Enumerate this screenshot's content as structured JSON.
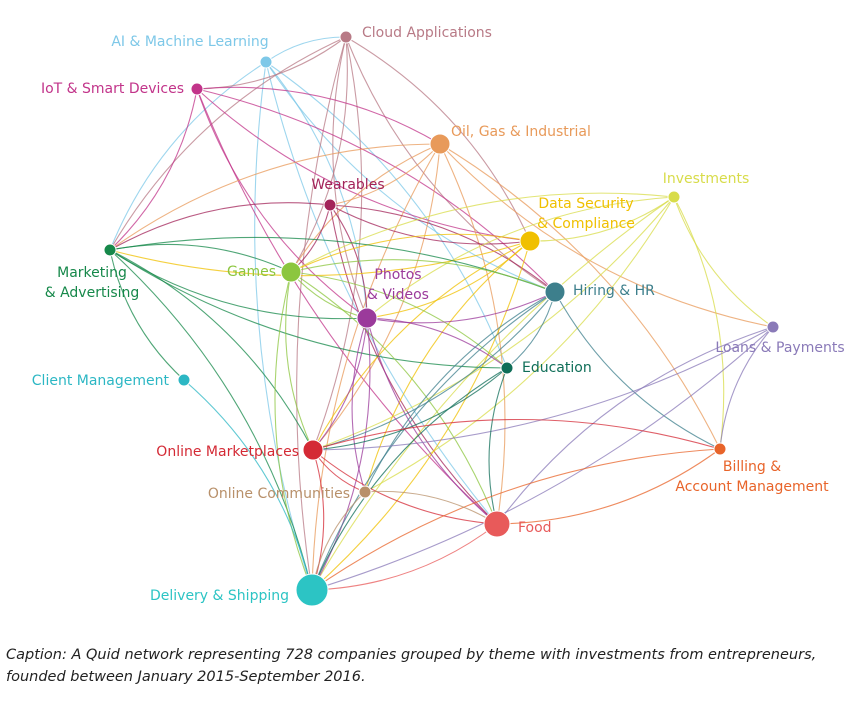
{
  "network": {
    "nodes": [
      {
        "id": "ai",
        "label_lines": [
          "AI & Machine Learning"
        ],
        "color": "#7ec8e8",
        "size": "small"
      },
      {
        "id": "cloud",
        "label_lines": [
          "Cloud Applications"
        ],
        "color": "#b87a86",
        "size": "small"
      },
      {
        "id": "iot",
        "label_lines": [
          "IoT & Smart Devices"
        ],
        "color": "#c2348a",
        "size": "small"
      },
      {
        "id": "oil",
        "label_lines": [
          "Oil, Gas & Industrial"
        ],
        "color": "#e89a5a",
        "size": "medium"
      },
      {
        "id": "wearables",
        "label_lines": [
          "Wearables"
        ],
        "color": "#a3245a",
        "size": "small"
      },
      {
        "id": "investments",
        "label_lines": [
          "Investments"
        ],
        "color": "#d8dc4a",
        "size": "small"
      },
      {
        "id": "datasec",
        "label_lines": [
          "Data Security",
          "& Compliance"
        ],
        "color": "#f0c000",
        "size": "medium"
      },
      {
        "id": "marketing",
        "label_lines": [
          "Marketing",
          "& Advertising"
        ],
        "color": "#16884a",
        "size": "small"
      },
      {
        "id": "games",
        "label_lines": [
          "Games"
        ],
        "color": "#8cc63f",
        "size": "medium"
      },
      {
        "id": "photos",
        "label_lines": [
          "Photos",
          "& Videos"
        ],
        "color": "#9b3a9b",
        "size": "medium"
      },
      {
        "id": "hiring",
        "label_lines": [
          "Hiring & HR"
        ],
        "color": "#3d7f8c",
        "size": "medium"
      },
      {
        "id": "loans",
        "label_lines": [
          "Loans & Payments"
        ],
        "color": "#8a7ab8",
        "size": "small"
      },
      {
        "id": "client",
        "label_lines": [
          "Client Management"
        ],
        "color": "#2cb7c4",
        "size": "small"
      },
      {
        "id": "education",
        "label_lines": [
          "Education"
        ],
        "color": "#0f6e58",
        "size": "small"
      },
      {
        "id": "marketplaces",
        "label_lines": [
          "Online Marketplaces"
        ],
        "color": "#d42a35",
        "size": "medium"
      },
      {
        "id": "billing",
        "label_lines": [
          "Billing &",
          "Account Management"
        ],
        "color": "#e8642a",
        "size": "small"
      },
      {
        "id": "communities",
        "label_lines": [
          "Online Communities"
        ],
        "color": "#b8906a",
        "size": "small"
      },
      {
        "id": "food",
        "label_lines": [
          "Food"
        ],
        "color": "#e85a5a",
        "size": "large"
      },
      {
        "id": "delivery",
        "label_lines": [
          "Delivery & Shipping"
        ],
        "color": "#2cc4c4",
        "size": "xlarge"
      }
    ],
    "edges": [
      [
        "ai",
        "marketing"
      ],
      [
        "ai",
        "photos"
      ],
      [
        "ai",
        "hiring"
      ],
      [
        "ai",
        "education"
      ],
      [
        "ai",
        "food"
      ],
      [
        "ai",
        "cloud"
      ],
      [
        "ai",
        "delivery"
      ],
      [
        "cloud",
        "iot"
      ],
      [
        "cloud",
        "marketing"
      ],
      [
        "cloud",
        "games"
      ],
      [
        "cloud",
        "photos"
      ],
      [
        "cloud",
        "marketplaces"
      ],
      [
        "cloud",
        "delivery"
      ],
      [
        "cloud",
        "datasec"
      ],
      [
        "cloud",
        "hiring"
      ],
      [
        "iot",
        "marketing"
      ],
      [
        "iot",
        "photos"
      ],
      [
        "iot",
        "hiring"
      ],
      [
        "iot",
        "food"
      ],
      [
        "iot",
        "oil"
      ],
      [
        "iot",
        "datasec"
      ],
      [
        "oil",
        "wearables"
      ],
      [
        "oil",
        "games"
      ],
      [
        "oil",
        "marketplaces"
      ],
      [
        "oil",
        "delivery"
      ],
      [
        "oil",
        "food"
      ],
      [
        "oil",
        "marketing"
      ],
      [
        "oil",
        "billing"
      ],
      [
        "oil",
        "loans"
      ],
      [
        "wearables",
        "photos"
      ],
      [
        "wearables",
        "food"
      ],
      [
        "wearables",
        "hiring"
      ],
      [
        "wearables",
        "datasec"
      ],
      [
        "wearables",
        "games"
      ],
      [
        "wearables",
        "marketing"
      ],
      [
        "investments",
        "datasec"
      ],
      [
        "investments",
        "loans"
      ],
      [
        "investments",
        "billing"
      ],
      [
        "investments",
        "delivery"
      ],
      [
        "investments",
        "marketplaces"
      ],
      [
        "investments",
        "photos"
      ],
      [
        "investments",
        "communities"
      ],
      [
        "investments",
        "games"
      ],
      [
        "datasec",
        "marketing"
      ],
      [
        "datasec",
        "marketplaces"
      ],
      [
        "datasec",
        "delivery"
      ],
      [
        "datasec",
        "communities"
      ],
      [
        "datasec",
        "photos"
      ],
      [
        "datasec",
        "games"
      ],
      [
        "marketing",
        "games"
      ],
      [
        "marketing",
        "photos"
      ],
      [
        "marketing",
        "hiring"
      ],
      [
        "marketing",
        "client"
      ],
      [
        "marketing",
        "delivery"
      ],
      [
        "marketing",
        "education"
      ],
      [
        "marketing",
        "marketplaces"
      ],
      [
        "games",
        "photos"
      ],
      [
        "games",
        "education"
      ],
      [
        "games",
        "marketplaces"
      ],
      [
        "games",
        "food"
      ],
      [
        "games",
        "delivery"
      ],
      [
        "games",
        "hiring"
      ],
      [
        "photos",
        "hiring"
      ],
      [
        "photos",
        "marketplaces"
      ],
      [
        "photos",
        "food"
      ],
      [
        "photos",
        "delivery"
      ],
      [
        "photos",
        "communities"
      ],
      [
        "photos",
        "education"
      ],
      [
        "hiring",
        "delivery"
      ],
      [
        "hiring",
        "marketplaces"
      ],
      [
        "hiring",
        "billing"
      ],
      [
        "hiring",
        "education"
      ],
      [
        "hiring",
        "communities"
      ],
      [
        "loans",
        "marketplaces"
      ],
      [
        "loans",
        "billing"
      ],
      [
        "loans",
        "delivery"
      ],
      [
        "loans",
        "food"
      ],
      [
        "client",
        "delivery"
      ],
      [
        "education",
        "delivery"
      ],
      [
        "education",
        "marketplaces"
      ],
      [
        "education",
        "food"
      ],
      [
        "marketplaces",
        "delivery"
      ],
      [
        "marketplaces",
        "food"
      ],
      [
        "marketplaces",
        "billing"
      ],
      [
        "marketplaces",
        "communities"
      ],
      [
        "billing",
        "food"
      ],
      [
        "billing",
        "delivery"
      ],
      [
        "communities",
        "food"
      ],
      [
        "communities",
        "delivery"
      ],
      [
        "food",
        "delivery"
      ]
    ]
  },
  "caption": {
    "line1": "Caption: A Quid network representing 728 companies grouped by theme with investments from entrepreneurs,",
    "line2": "founded between January 2015-September 2016."
  }
}
